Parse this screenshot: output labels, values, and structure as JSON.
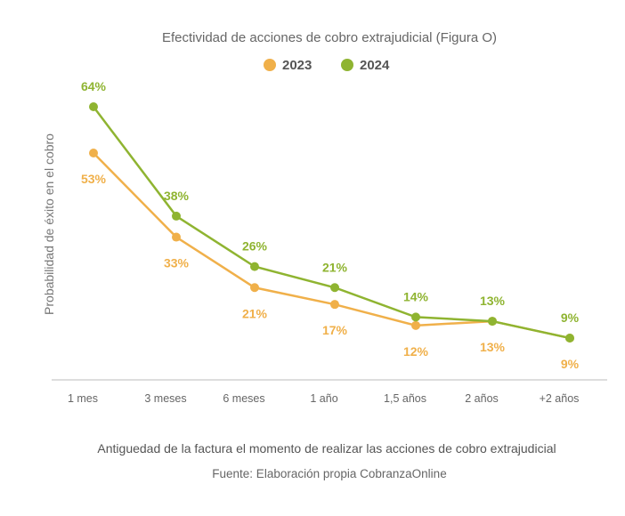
{
  "chart_data": {
    "type": "line",
    "title": "Efectividad de acciones de cobro extrajudicial (Figura O)",
    "categories": [
      "1 mes",
      "3 meses",
      "6 meses",
      "1 año",
      "1,5 años",
      "2 años",
      "+2 años"
    ],
    "series": [
      {
        "name": "2023",
        "values": [
          53,
          33,
          21,
          17,
          12,
          13,
          9
        ],
        "labels": [
          "53%",
          "33%",
          "21%",
          "17%",
          "12%",
          "13%",
          "9%"
        ],
        "color": "#f0b04a"
      },
      {
        "name": "2024",
        "values": [
          64,
          38,
          26,
          21,
          14,
          13,
          9
        ],
        "labels": [
          "64%",
          "38%",
          "26%",
          "21%",
          "14%",
          "13%",
          "9%"
        ],
        "color": "#8fb431"
      }
    ],
    "ylabel": "Probabilidad de éxito en el cobro",
    "xlabel": "Antiguedad de la factura el momento de realizar las acciones de cobro extrajudicial",
    "source": "Fuente: Elaboración propia CobranzaOnline",
    "ylim": [
      0,
      70
    ],
    "grid": false,
    "legend_position": "top-center"
  }
}
